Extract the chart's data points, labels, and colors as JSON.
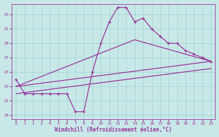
{
  "xlabel": "Windchill (Refroidissement éolien,°C)",
  "bg_color": "#c8e8e8",
  "grid_color": "#a8d8d8",
  "line_color": "#993399",
  "xlim": [
    -0.5,
    23.5
  ],
  "ylim": [
    18.5,
    34.5
  ],
  "yticks": [
    19,
    21,
    23,
    25,
    27,
    29,
    31,
    33
  ],
  "xticks": [
    0,
    1,
    2,
    3,
    4,
    5,
    6,
    7,
    8,
    9,
    10,
    11,
    12,
    13,
    14,
    15,
    16,
    17,
    18,
    19,
    20,
    21,
    22,
    23
  ],
  "line1_x": [
    0,
    1,
    2,
    3,
    4,
    5,
    6,
    7,
    8,
    9,
    10,
    11,
    12,
    13,
    14,
    15,
    16,
    17,
    18,
    19,
    20,
    21,
    22,
    23
  ],
  "line1_y": [
    24,
    22,
    22,
    22,
    22,
    22,
    22,
    19.5,
    19.5,
    25,
    29,
    32,
    34,
    34,
    32,
    32.5,
    31,
    30,
    29,
    29,
    28,
    27.5,
    27,
    26.5
  ],
  "line2_x": [
    0,
    23
  ],
  "line2_y": [
    23,
    26.5
  ],
  "line3_x": [
    0,
    23
  ],
  "line3_y": [
    22,
    25.5
  ],
  "line4_x": [
    0,
    14,
    23
  ],
  "line4_y": [
    23,
    29.5,
    26.5
  ]
}
